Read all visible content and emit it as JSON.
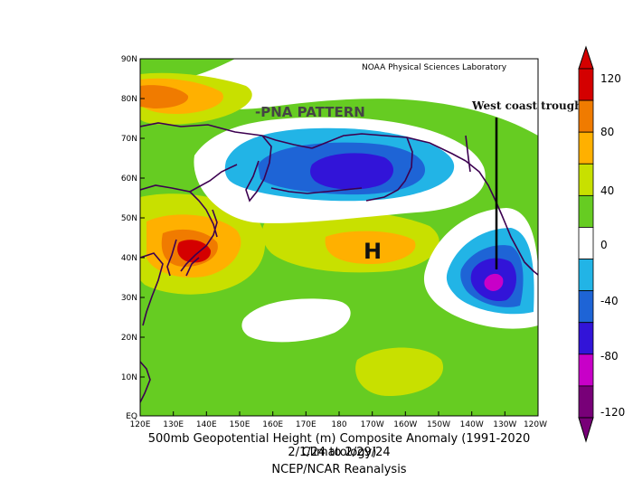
{
  "source_label": "NOAA Physical Sciences Laboratory",
  "annotations": {
    "pattern": "-PNA PATTERN",
    "trough": "West coast trough",
    "high": "H"
  },
  "lat_labels": [
    "90N",
    "80N",
    "70N",
    "60N",
    "50N",
    "40N",
    "30N",
    "20N",
    "10N",
    "EQ"
  ],
  "lon_labels": [
    "120E",
    "130E",
    "140E",
    "150E",
    "160E",
    "170E",
    "180",
    "170W",
    "160W",
    "150W",
    "140W",
    "130W",
    "120W"
  ],
  "colorbar": {
    "ticks": [
      "120",
      "80",
      "40",
      "0",
      "-40",
      "-80",
      "-120"
    ],
    "colors": [
      "#d40000",
      "#f07b00",
      "#ffb000",
      "#c8e000",
      "#66cc22",
      "#ffffff",
      "#22b4e6",
      "#1e64d6",
      "#3214d8",
      "#c800c8",
      "#780078"
    ]
  },
  "caption": {
    "line1": "500mb Geopotential Height (m) Composite Anomaly (1991-2020 Climatology)",
    "line2": "2/1/24  to 2/29/24",
    "line3": "NCEP/NCAR Reanalysis"
  }
}
